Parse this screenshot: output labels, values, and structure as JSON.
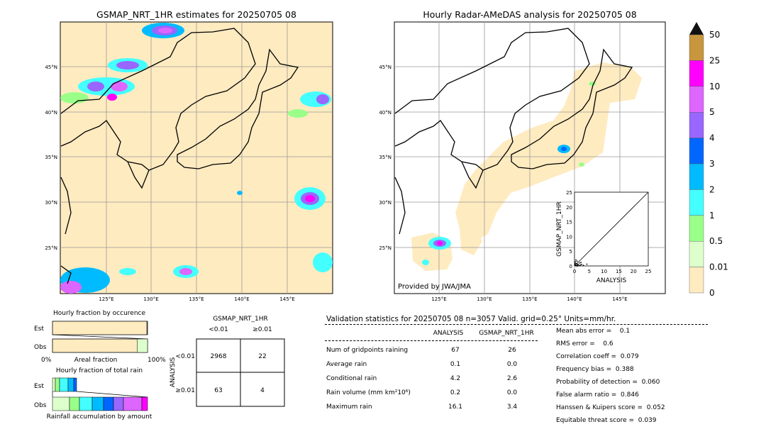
{
  "left_map": {
    "title": "GSMAP_NRT_1HR estimates for 20250705 08",
    "lat_labels": [
      "45°N",
      "40°N",
      "35°N",
      "30°N",
      "25°N"
    ],
    "lon_labels": [
      "125°E",
      "130°E",
      "135°E",
      "140°E",
      "145°E"
    ]
  },
  "right_map": {
    "title": "Hourly Radar-AMeDAS analysis for 20250705 08",
    "lat_labels": [
      "45°N",
      "40°N",
      "35°N",
      "30°N",
      "25°N"
    ],
    "lon_labels": [
      "125°E",
      "130°E",
      "135°E",
      "140°E",
      "145°E"
    ],
    "credit": "Provided by JWA/JMA"
  },
  "colorbar": {
    "levels": [
      "50",
      "25",
      "10",
      "5",
      "4",
      "3",
      "2",
      "1",
      "0.5",
      "0.01",
      "0"
    ],
    "colors": [
      "#c8963c",
      "#ff00ff",
      "#dd66ff",
      "#9966ff",
      "#0066ff",
      "#00bbff",
      "#44ffff",
      "#99ff88",
      "#ddffcc",
      "#ffebc0"
    ]
  },
  "chart_data": [
    {
      "type": "scatter",
      "ylabel": "GSMAP_NRT_1HR",
      "xlabel": "ANALYSIS",
      "xlim": [
        0,
        25
      ],
      "ylim": [
        0,
        25
      ],
      "x_ticks": [
        "0",
        "5",
        "10",
        "15",
        "20",
        "25"
      ],
      "y_ticks": [
        "0",
        "5",
        "10",
        "15",
        "20",
        "25"
      ],
      "points": [
        [
          0.1,
          0.3
        ],
        [
          0.2,
          0.5
        ],
        [
          0.4,
          0.2
        ],
        [
          0.6,
          0.8
        ],
        [
          0.8,
          0.1
        ],
        [
          1.0,
          0.4
        ],
        [
          1.2,
          0.6
        ],
        [
          1.5,
          0.2
        ],
        [
          1.8,
          1.0
        ],
        [
          2.0,
          0.3
        ],
        [
          0.3,
          1.4
        ],
        [
          0.5,
          2.0
        ],
        [
          2.4,
          0.5
        ],
        [
          3.0,
          0.2
        ],
        [
          1.1,
          0.0
        ],
        [
          0.7,
          0.0
        ],
        [
          0.2,
          0.9
        ],
        [
          0.9,
          1.6
        ],
        [
          2.2,
          1.2
        ],
        [
          4.2,
          0.6
        ]
      ]
    },
    {
      "type": "bar",
      "title": "Hourly fraction by occurence",
      "categories": [
        "Est",
        "Obs"
      ],
      "xlabel": "Areal fraction",
      "x_left": "0%",
      "x_right": "100%",
      "values": [
        0.99,
        0.98
      ]
    },
    {
      "type": "bar",
      "title": "Hourly fraction of total rain",
      "categories": [
        "Est",
        "Obs"
      ],
      "xlabel": "Rainfall accumulation by amount"
    }
  ],
  "contingency": {
    "header": "GSMAP_NRT_1HR",
    "col1": "<0.01",
    "col2": "≥0.01",
    "side_label": "ANALYSIS",
    "row1": "<0.01",
    "row2": "≥0.01",
    "cells": [
      "2968",
      "22",
      "63",
      "4"
    ]
  },
  "validation": {
    "title": "Validation statistics for 20250705 08  n=3057 Valid. grid=0.25° Units=mm/hr.",
    "col_analysis": "ANALYSIS",
    "col_gsmap": "GSMAP_NRT_1HR",
    "rows": [
      {
        "label": "Num of gridpoints raining",
        "a": "67",
        "g": "26"
      },
      {
        "label": "Average rain",
        "a": "0.1",
        "g": "0.0"
      },
      {
        "label": "Conditional rain",
        "a": "4.2",
        "g": "2.6"
      },
      {
        "label": "Rain volume (mm km²10⁶)",
        "a": "0.2",
        "g": "0.0"
      },
      {
        "label": "Maximum rain",
        "a": "16.1",
        "g": "3.4"
      }
    ],
    "scores": [
      "Mean abs error =    0.1",
      "RMS error =    0.6",
      "Correlation coeff =  0.079",
      "Frequency bias =  0.388",
      "Probability of detection =  0.060",
      "False alarm ratio =  0.846",
      "Hanssen & Kuipers score =  0.052",
      "Equitable threat score =  0.039"
    ]
  }
}
